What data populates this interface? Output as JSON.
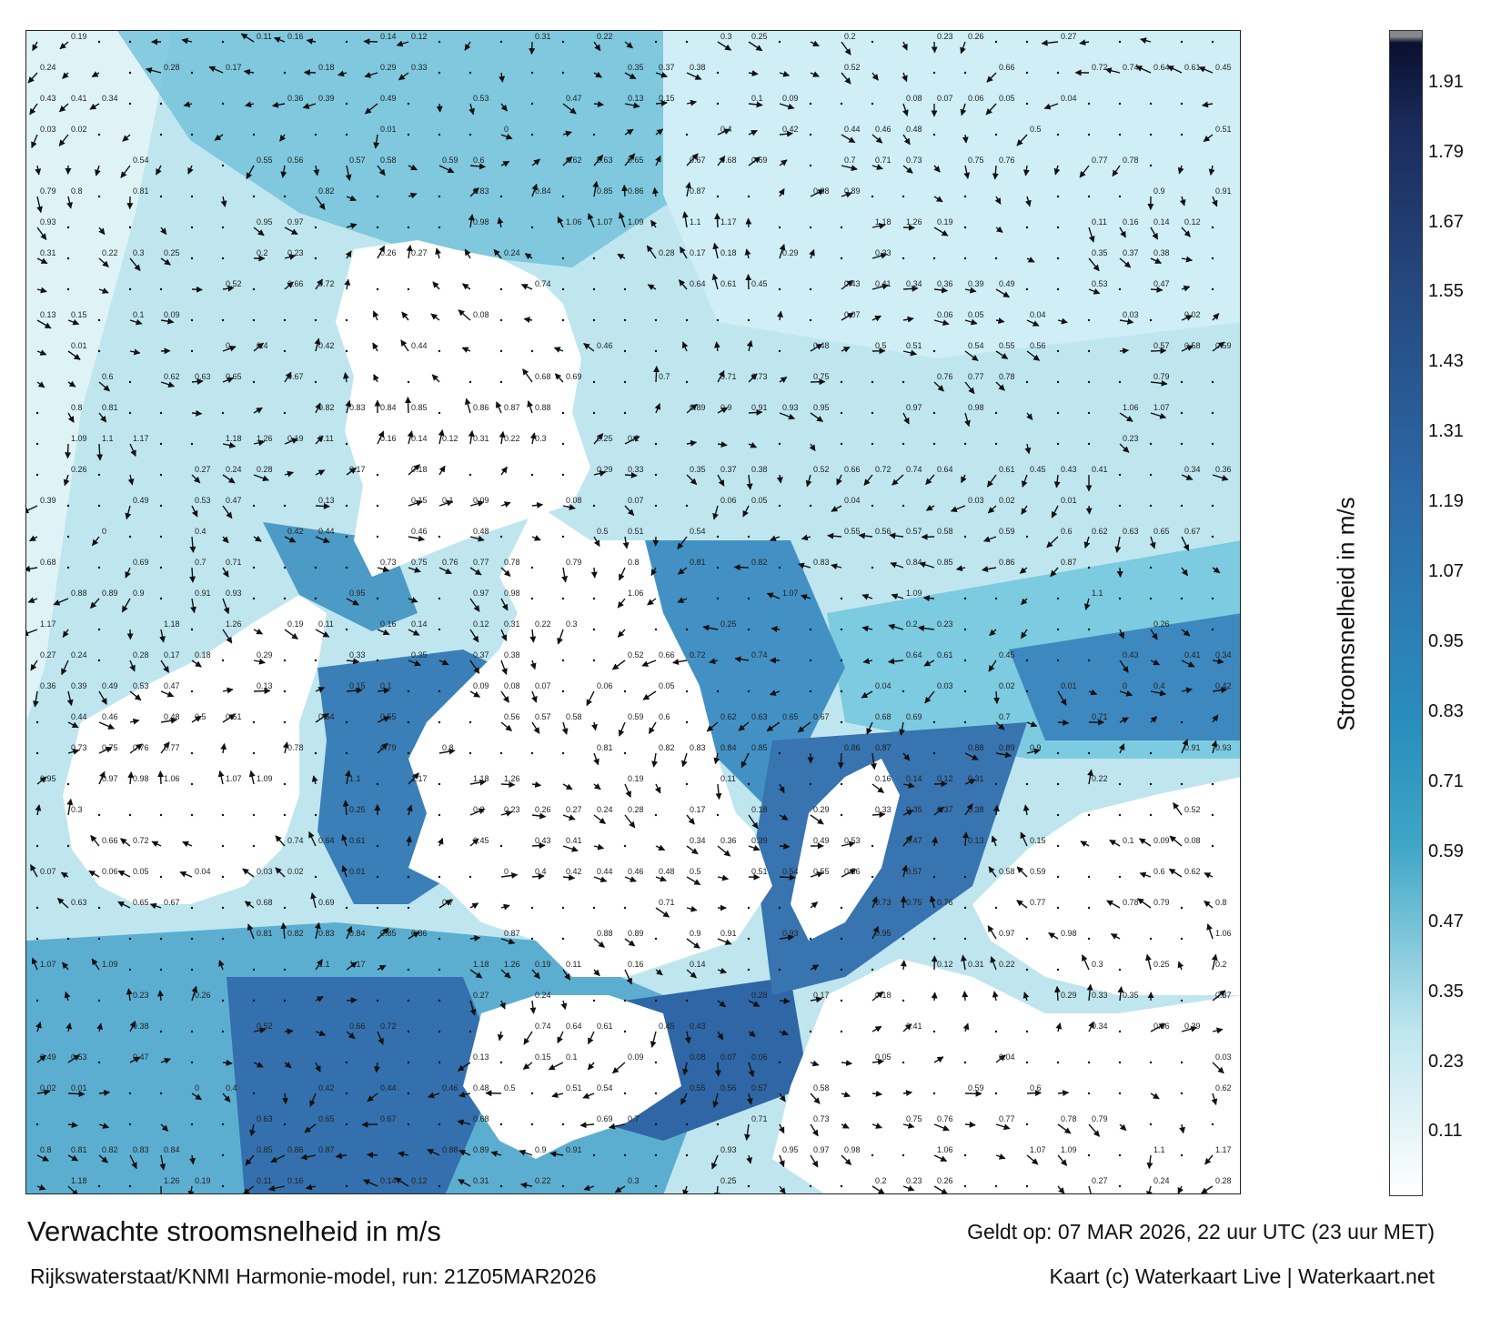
{
  "title": "Verwachte stroomsnelheid in m/s",
  "subtitle": "Rijkswaterstaat/KNMI Harmonie-model, run: 21Z05MAR2026",
  "valid_time": "Geldt op: 07 MAR 2026, 22 uur UTC (23 uur MET)",
  "credit": "Kaart (c) Waterkaart Live | Waterkaart.net",
  "colorbar": {
    "label": "Stroomsnelheid in m/s",
    "ticks": [
      "1.91",
      "1.79",
      "1.67",
      "1.55",
      "1.43",
      "1.31",
      "1.19",
      "1.07",
      "0.95",
      "0.83",
      "0.71",
      "0.59",
      "0.47",
      "0.35",
      "0.23",
      "0.11"
    ],
    "min": 0,
    "max": 2.0,
    "colors": {
      "low": "#ffffff",
      "mid_low": "#bfe6ee",
      "mid": "#3fa6c7",
      "mid_high": "#2c6aa8",
      "high": "#1a2a5a",
      "top": "#0a1030"
    }
  },
  "map": {
    "background_land": "#ffffff",
    "sea_low_color": "#cdeef4",
    "sea_mid_color": "#5ab8d4",
    "sea_high_color": "#2d69a8",
    "arrow_color": "#111111",
    "speed_labels": [
      "0.19",
      "0.11",
      "0.16",
      "0.14",
      "0.12",
      "0.31",
      "0.22",
      "0.3",
      "0.25",
      "0.2",
      "0.23",
      "0.26",
      "0.27",
      "0.24",
      "0.28",
      "0.17",
      "0.18",
      "0.29",
      "0.33",
      "0.35",
      "0.37",
      "0.38",
      "0.52",
      "0.66",
      "0.72",
      "0.74",
      "0.64",
      "0.61",
      "0.45",
      "0.43",
      "0.41",
      "0.34",
      "0.36",
      "0.39",
      "0.49",
      "0.53",
      "0.47",
      "0.13",
      "0.15",
      "0.1",
      "0.09",
      "0.08",
      "0.07",
      "0.06",
      "0.05",
      "0.04",
      "0.03",
      "0.02",
      "0.01",
      "0",
      "0.4",
      "0.42",
      "0.44",
      "0.46",
      "0.48",
      "0.5",
      "0.51",
      "0.54",
      "0.55",
      "0.56",
      "0.57",
      "0.58",
      "0.59",
      "0.6",
      "0.62",
      "0.63",
      "0.65",
      "0.67",
      "0.68",
      "0.69",
      "0.7",
      "0.71",
      "0.73",
      "0.75",
      "0.76",
      "0.77",
      "0.78",
      "0.79",
      "0.8",
      "0.81",
      "0.82",
      "0.83",
      "0.84",
      "0.85",
      "0.86",
      "0.87",
      "0.88",
      "0.89",
      "0.9",
      "0.91",
      "0.93",
      "0.95",
      "0.97",
      "0.98",
      "1.06",
      "1.07",
      "1.09",
      "1.1",
      "1.17",
      "1.18",
      "1.26"
    ]
  }
}
